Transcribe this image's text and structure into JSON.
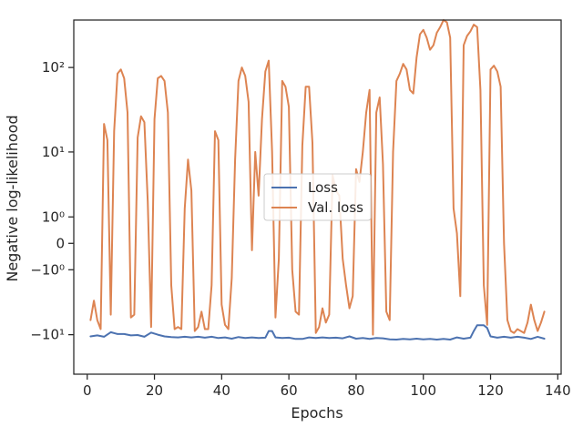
{
  "chart_data": {
    "type": "line",
    "title": "",
    "xlabel": "Epochs",
    "ylabel": "Negative log-likelihood",
    "y_scale": "symlog",
    "grid": false,
    "legend_position": "center",
    "xlim": [
      -4,
      141
    ],
    "ylim": [
      -30,
      350
    ],
    "x_ticks": [
      0,
      20,
      40,
      60,
      80,
      100,
      120,
      140
    ],
    "y_ticks": [
      {
        "value": 100,
        "label": "10²"
      },
      {
        "value": 10,
        "label": "10¹"
      },
      {
        "value": 1,
        "label": "10⁰"
      },
      {
        "value": 0,
        "label": "0"
      },
      {
        "value": -1,
        "label": "−10⁰"
      },
      {
        "value": -10,
        "label": "−10¹"
      }
    ],
    "series": [
      {
        "name": "Loss",
        "color": "#4c72b0",
        "points": [
          [
            1,
            -10.5
          ],
          [
            3,
            -10.2
          ],
          [
            5,
            -10.6
          ],
          [
            7,
            -9.3
          ],
          [
            9,
            -9.8
          ],
          [
            11,
            -9.8
          ],
          [
            13,
            -10.2
          ],
          [
            15,
            -10.1
          ],
          [
            17,
            -10.6
          ],
          [
            19,
            -9.4
          ],
          [
            21,
            -10.0
          ],
          [
            23,
            -10.5
          ],
          [
            25,
            -10.7
          ],
          [
            27,
            -10.8
          ],
          [
            29,
            -10.6
          ],
          [
            31,
            -10.8
          ],
          [
            33,
            -10.6
          ],
          [
            35,
            -10.9
          ],
          [
            37,
            -10.6
          ],
          [
            39,
            -11.0
          ],
          [
            41,
            -10.8
          ],
          [
            43,
            -11.2
          ],
          [
            45,
            -10.7
          ],
          [
            47,
            -11.0
          ],
          [
            49,
            -10.8
          ],
          [
            51,
            -11.0
          ],
          [
            53,
            -10.9
          ],
          [
            54,
            -9.0
          ],
          [
            55,
            -9.0
          ],
          [
            56,
            -10.8
          ],
          [
            58,
            -11.0
          ],
          [
            60,
            -10.9
          ],
          [
            62,
            -11.3
          ],
          [
            64,
            -11.3
          ],
          [
            66,
            -10.8
          ],
          [
            68,
            -11.0
          ],
          [
            70,
            -10.8
          ],
          [
            72,
            -11.0
          ],
          [
            74,
            -10.9
          ],
          [
            76,
            -11.1
          ],
          [
            78,
            -10.5
          ],
          [
            80,
            -11.2
          ],
          [
            82,
            -11.0
          ],
          [
            84,
            -11.3
          ],
          [
            86,
            -11.0
          ],
          [
            88,
            -11.1
          ],
          [
            90,
            -11.4
          ],
          [
            92,
            -11.5
          ],
          [
            94,
            -11.3
          ],
          [
            96,
            -11.4
          ],
          [
            98,
            -11.2
          ],
          [
            100,
            -11.4
          ],
          [
            102,
            -11.3
          ],
          [
            104,
            -11.5
          ],
          [
            106,
            -11.3
          ],
          [
            108,
            -11.5
          ],
          [
            110,
            -10.8
          ],
          [
            112,
            -11.2
          ],
          [
            114,
            -10.9
          ],
          [
            115,
            -9.0
          ],
          [
            116,
            -7.6
          ],
          [
            118,
            -7.6
          ],
          [
            119,
            -8.2
          ],
          [
            120,
            -10.5
          ],
          [
            122,
            -10.9
          ],
          [
            124,
            -10.6
          ],
          [
            126,
            -10.9
          ],
          [
            128,
            -10.6
          ],
          [
            130,
            -10.9
          ],
          [
            132,
            -11.3
          ],
          [
            134,
            -10.6
          ],
          [
            136,
            -11.2
          ]
        ]
      },
      {
        "name": "Val. loss",
        "color": "#dd8452",
        "points": [
          [
            1,
            -6.5
          ],
          [
            2,
            -3.5
          ],
          [
            3,
            -6.5
          ],
          [
            4,
            -8.5
          ],
          [
            5,
            22
          ],
          [
            6,
            14
          ],
          [
            7,
            -5.5
          ],
          [
            8,
            18
          ],
          [
            9,
            85
          ],
          [
            10,
            95
          ],
          [
            11,
            75
          ],
          [
            12,
            30
          ],
          [
            13,
            -6.0
          ],
          [
            14,
            -5.5
          ],
          [
            15,
            15
          ],
          [
            16,
            27
          ],
          [
            17,
            23
          ],
          [
            18,
            2
          ],
          [
            19,
            -8.0
          ],
          [
            20,
            25
          ],
          [
            21,
            75
          ],
          [
            22,
            80
          ],
          [
            23,
            70
          ],
          [
            24,
            30
          ],
          [
            25,
            -2.0
          ],
          [
            26,
            -8.5
          ],
          [
            27,
            -8.0
          ],
          [
            28,
            -8.5
          ],
          [
            29,
            1.5
          ],
          [
            30,
            8.0
          ],
          [
            31,
            3.0
          ],
          [
            32,
            -9.0
          ],
          [
            33,
            -8.0
          ],
          [
            34,
            -5.0
          ],
          [
            35,
            -8.5
          ],
          [
            36,
            -8.5
          ],
          [
            37,
            -2.0
          ],
          [
            38,
            18
          ],
          [
            39,
            14
          ],
          [
            40,
            -4.0
          ],
          [
            41,
            -7.5
          ],
          [
            42,
            -8.5
          ],
          [
            43,
            -1.5
          ],
          [
            44,
            8.0
          ],
          [
            45,
            70
          ],
          [
            46,
            100
          ],
          [
            47,
            80
          ],
          [
            48,
            40
          ],
          [
            49,
            -0.2
          ],
          [
            50,
            10
          ],
          [
            51,
            2.5
          ],
          [
            52,
            25
          ],
          [
            53,
            90
          ],
          [
            54,
            120
          ],
          [
            55,
            10
          ],
          [
            56,
            -6.0
          ],
          [
            57,
            -0.5
          ],
          [
            58,
            70
          ],
          [
            59,
            60
          ],
          [
            60,
            35
          ],
          [
            61,
            -1.0
          ],
          [
            62,
            -5.0
          ],
          [
            63,
            -5.5
          ],
          [
            64,
            12
          ],
          [
            65,
            60
          ],
          [
            66,
            60
          ],
          [
            67,
            13
          ],
          [
            68,
            -9.5
          ],
          [
            69,
            -8.0
          ],
          [
            70,
            -4.5
          ],
          [
            71,
            -7.0
          ],
          [
            72,
            -5.5
          ],
          [
            73,
            5.0
          ],
          [
            74,
            3.0
          ],
          [
            75,
            2.5
          ],
          [
            76,
            -0.5
          ],
          [
            77,
            -2.0
          ],
          [
            78,
            -4.5
          ],
          [
            79,
            -3.0
          ],
          [
            80,
            6.0
          ],
          [
            81,
            4.0
          ],
          [
            82,
            10
          ],
          [
            83,
            30
          ],
          [
            84,
            55
          ],
          [
            85,
            -10.0
          ],
          [
            86,
            30
          ],
          [
            87,
            45
          ],
          [
            88,
            7.0
          ],
          [
            89,
            -5.0
          ],
          [
            90,
            -6.5
          ],
          [
            91,
            10
          ],
          [
            92,
            70
          ],
          [
            93,
            85
          ],
          [
            94,
            110
          ],
          [
            95,
            95
          ],
          [
            96,
            55
          ],
          [
            97,
            50
          ],
          [
            98,
            130
          ],
          [
            99,
            240
          ],
          [
            100,
            270
          ],
          [
            101,
            220
          ],
          [
            102,
            160
          ],
          [
            103,
            180
          ],
          [
            104,
            250
          ],
          [
            105,
            290
          ],
          [
            106,
            350
          ],
          [
            107,
            330
          ],
          [
            108,
            220
          ],
          [
            109,
            1.5
          ],
          [
            110,
            0.3
          ],
          [
            111,
            -3.0
          ],
          [
            112,
            180
          ],
          [
            113,
            230
          ],
          [
            114,
            260
          ],
          [
            115,
            310
          ],
          [
            116,
            290
          ],
          [
            117,
            55
          ],
          [
            118,
            -2.0
          ],
          [
            119,
            -7.5
          ],
          [
            120,
            95
          ],
          [
            121,
            105
          ],
          [
            122,
            90
          ],
          [
            123,
            60
          ],
          [
            124,
            0.0
          ],
          [
            125,
            -6.5
          ],
          [
            126,
            -9.0
          ],
          [
            127,
            -9.5
          ],
          [
            128,
            -8.5
          ],
          [
            129,
            -9.0
          ],
          [
            130,
            -9.5
          ],
          [
            131,
            -7.0
          ],
          [
            132,
            -4.0
          ],
          [
            133,
            -6.5
          ],
          [
            134,
            -9.0
          ],
          [
            135,
            -7.0
          ],
          [
            136,
            -5.0
          ]
        ]
      }
    ]
  }
}
